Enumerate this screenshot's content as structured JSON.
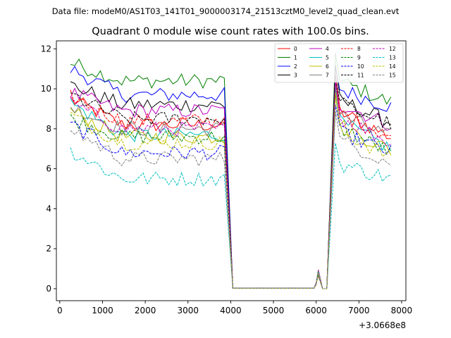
{
  "chart_data": {
    "type": "line",
    "suptitle": "Data file: modeM0/AS1T03_141T01_9000003174_21513cztM0_level2_quad_clean.evt",
    "title": "Quadrant 0 module wise count rates with 100.0s bins.",
    "xlabel": "",
    "ylabel": "",
    "x_offset_label": "+3.0668e8",
    "xlim": [
      -80,
      8100
    ],
    "ylim": [
      -0.6,
      12.4
    ],
    "xticks": [
      0,
      1000,
      2000,
      3000,
      4000,
      5000,
      6000,
      7000,
      8000
    ],
    "yticks": [
      0,
      2,
      4,
      6,
      8,
      10,
      12
    ],
    "gap": {
      "drop_start": 3850,
      "drop_end": 4050,
      "zero_start": 4050,
      "zero_end": 5950,
      "blip": [
        [
          6000,
          0.25
        ],
        [
          6050,
          0.8
        ],
        [
          6150,
          0.0
        ],
        [
          6250,
          0.0
        ]
      ],
      "rise_end": 6450
    },
    "segment1": {
      "x_start": 250,
      "x_end": 3850,
      "step": 100
    },
    "segment2": {
      "x_start": 6450,
      "x_end": 7750,
      "step": 100
    },
    "legend": {
      "location": "top-right",
      "columns": 4
    },
    "series": [
      {
        "name": "0",
        "color": "#ff0000",
        "dash": "solid",
        "base": 8.2,
        "start": 9.5,
        "end": 7.6,
        "peak": 10.6
      },
      {
        "name": "1",
        "color": "#008000",
        "dash": "solid",
        "base": 10.4,
        "start": 11.3,
        "end": 9.3,
        "peak": 11.9
      },
      {
        "name": "2",
        "color": "#0000ff",
        "dash": "solid",
        "base": 9.7,
        "start": 11.0,
        "end": 9.1,
        "peak": 11.2
      },
      {
        "name": "3",
        "color": "#000000",
        "dash": "solid",
        "base": 9.2,
        "start": 10.2,
        "end": 8.3,
        "peak": 11.0
      },
      {
        "name": "4",
        "color": "#bf00bf",
        "dash": "solid",
        "base": 8.9,
        "start": 9.8,
        "end": 8.2,
        "peak": 10.7
      },
      {
        "name": "5",
        "color": "#00bfbf",
        "dash": "solid",
        "base": 7.7,
        "start": 9.3,
        "end": 7.0,
        "peak": 10.2
      },
      {
        "name": "6",
        "color": "#bfbf00",
        "dash": "solid",
        "base": 7.6,
        "start": 8.9,
        "end": 6.9,
        "peak": 10.0
      },
      {
        "name": "7",
        "color": "#808080",
        "dash": "solid",
        "base": 8.0,
        "start": 9.1,
        "end": 7.6,
        "peak": 10.3
      },
      {
        "name": "8",
        "color": "#ff0000",
        "dash": "dashed",
        "base": 8.4,
        "start": 9.6,
        "end": 7.6,
        "peak": 10.5
      },
      {
        "name": "9",
        "color": "#008000",
        "dash": "dashed",
        "base": 7.6,
        "start": 8.5,
        "end": 6.8,
        "peak": 9.8
      },
      {
        "name": "10",
        "color": "#0000ff",
        "dash": "dashed",
        "base": 6.8,
        "start": 8.2,
        "end": 6.8,
        "peak": 9.2
      },
      {
        "name": "11",
        "color": "#000000",
        "dash": "dashed",
        "base": 8.5,
        "start": 9.7,
        "end": 8.2,
        "peak": 10.8
      },
      {
        "name": "12",
        "color": "#bf00bf",
        "dash": "dashed",
        "base": 8.0,
        "start": 9.3,
        "end": 7.3,
        "peak": 10.4
      },
      {
        "name": "13",
        "color": "#00bfbf",
        "dash": "dashed",
        "base": 5.5,
        "start": 6.9,
        "end": 5.5,
        "peak": 7.3
      },
      {
        "name": "14",
        "color": "#bfbf00",
        "dash": "dashed",
        "base": 7.3,
        "start": 8.7,
        "end": 6.6,
        "peak": 9.7
      },
      {
        "name": "15",
        "color": "#808080",
        "dash": "dashed",
        "base": 6.5,
        "start": 8.0,
        "end": 6.3,
        "peak": 9.0
      }
    ]
  }
}
